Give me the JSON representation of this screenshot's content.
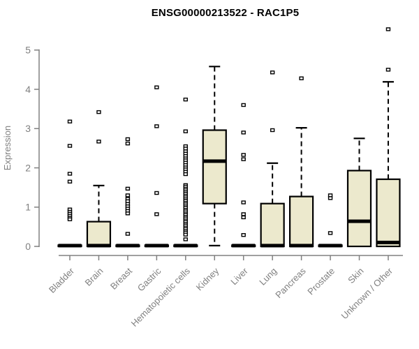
{
  "page": {
    "title": "ENSG00000213522 - RAC1P5"
  },
  "colors": {
    "background": "#ffffff",
    "box_fill": "#ece9cd",
    "box_stroke": "#000000",
    "median": "#000000",
    "whisker": "#000000",
    "outlier_fill": "#ffffff",
    "outlier_stroke": "#000000",
    "axis": "#808080",
    "tick_label": "#808080",
    "title": "#000000"
  },
  "chart_data": {
    "type": "boxplot",
    "title": "ENSG00000213522 - RAC1P5",
    "xlabel": "",
    "ylabel": "Expression",
    "ylim": [
      0,
      5.6
    ],
    "yticks": [
      0,
      1,
      2,
      3,
      4,
      5
    ],
    "grid": false,
    "legend": "none",
    "categories": [
      "Bladder",
      "Brain",
      "Breast",
      "Gastric",
      "Hematopoietic cells",
      "Kidney",
      "Liver",
      "Lung",
      "Pancreas",
      "Prostate",
      "Skin",
      "Unknown / Other"
    ],
    "series": [
      {
        "name": "Bladder",
        "whisker_low": 0,
        "q1": 0,
        "median": 0.02,
        "q3": 0.03,
        "whisker_high": 0.03,
        "outliers": [
          3.18,
          2.56,
          1.85,
          1.65,
          0.94,
          0.88,
          0.83,
          0.78,
          0.73,
          0.69
        ]
      },
      {
        "name": "Brain",
        "whisker_low": 0,
        "q1": 0,
        "median": 0.02,
        "q3": 0.63,
        "whisker_high": 1.55,
        "outliers": [
          3.42,
          2.67
        ]
      },
      {
        "name": "Breast",
        "whisker_low": 0,
        "q1": 0,
        "median": 0.02,
        "q3": 0.03,
        "whisker_high": 0.03,
        "outliers": [
          2.73,
          2.62,
          1.47,
          1.3,
          1.21,
          1.15,
          1.08,
          1.02,
          0.96,
          0.9,
          0.84,
          0.32
        ]
      },
      {
        "name": "Gastric",
        "whisker_low": 0,
        "q1": 0,
        "median": 0.02,
        "q3": 0.03,
        "whisker_high": 0.03,
        "outliers": [
          4.05,
          3.06,
          1.36,
          0.82
        ]
      },
      {
        "name": "Hematopoietic cells",
        "whisker_low": 0,
        "q1": 0,
        "median": 0.02,
        "q3": 0.03,
        "whisker_high": 0.03,
        "outliers": [
          3.74,
          2.93,
          2.55,
          2.49,
          2.42,
          2.36,
          2.3,
          2.24,
          2.19,
          2.13,
          2.07,
          2.01,
          1.96,
          1.9,
          1.84,
          1.56,
          1.52,
          1.47,
          1.43,
          1.38,
          1.34,
          1.29,
          1.25,
          1.2,
          1.16,
          1.11,
          1.07,
          1.02,
          0.98,
          0.93,
          0.89,
          0.84,
          0.8,
          0.75,
          0.71,
          0.66,
          0.62,
          0.57,
          0.53,
          0.48,
          0.44,
          0.39,
          0.35,
          0.3,
          0.18
        ]
      },
      {
        "name": "Kidney",
        "whisker_low": 0.02,
        "q1": 1.09,
        "median": 2.17,
        "q3": 2.96,
        "whisker_high": 4.58,
        "outliers": []
      },
      {
        "name": "Liver",
        "whisker_low": 0,
        "q1": 0,
        "median": 0.02,
        "q3": 0.03,
        "whisker_high": 0.03,
        "outliers": [
          3.6,
          2.9,
          2.33,
          2.22,
          1.12,
          0.82,
          0.74,
          0.29
        ]
      },
      {
        "name": "Lung",
        "whisker_low": 0,
        "q1": 0,
        "median": 0.02,
        "q3": 1.09,
        "whisker_high": 2.12,
        "outliers": [
          4.43,
          2.96
        ]
      },
      {
        "name": "Pancreas",
        "whisker_low": 0,
        "q1": 0,
        "median": 0.02,
        "q3": 1.27,
        "whisker_high": 3.02,
        "outliers": [
          4.28
        ]
      },
      {
        "name": "Prostate",
        "whisker_low": 0,
        "q1": 0,
        "median": 0.02,
        "q3": 0.03,
        "whisker_high": 0.03,
        "outliers": [
          1.3,
          1.23,
          0.34
        ]
      },
      {
        "name": "Skin",
        "whisker_low": 0,
        "q1": 0,
        "median": 0.64,
        "q3": 1.93,
        "whisker_high": 2.75,
        "outliers": []
      },
      {
        "name": "Unknown / Other",
        "whisker_low": 0,
        "q1": 0,
        "median": 0.1,
        "q3": 1.71,
        "whisker_high": 4.19,
        "outliers": [
          5.53,
          4.5
        ]
      }
    ]
  }
}
